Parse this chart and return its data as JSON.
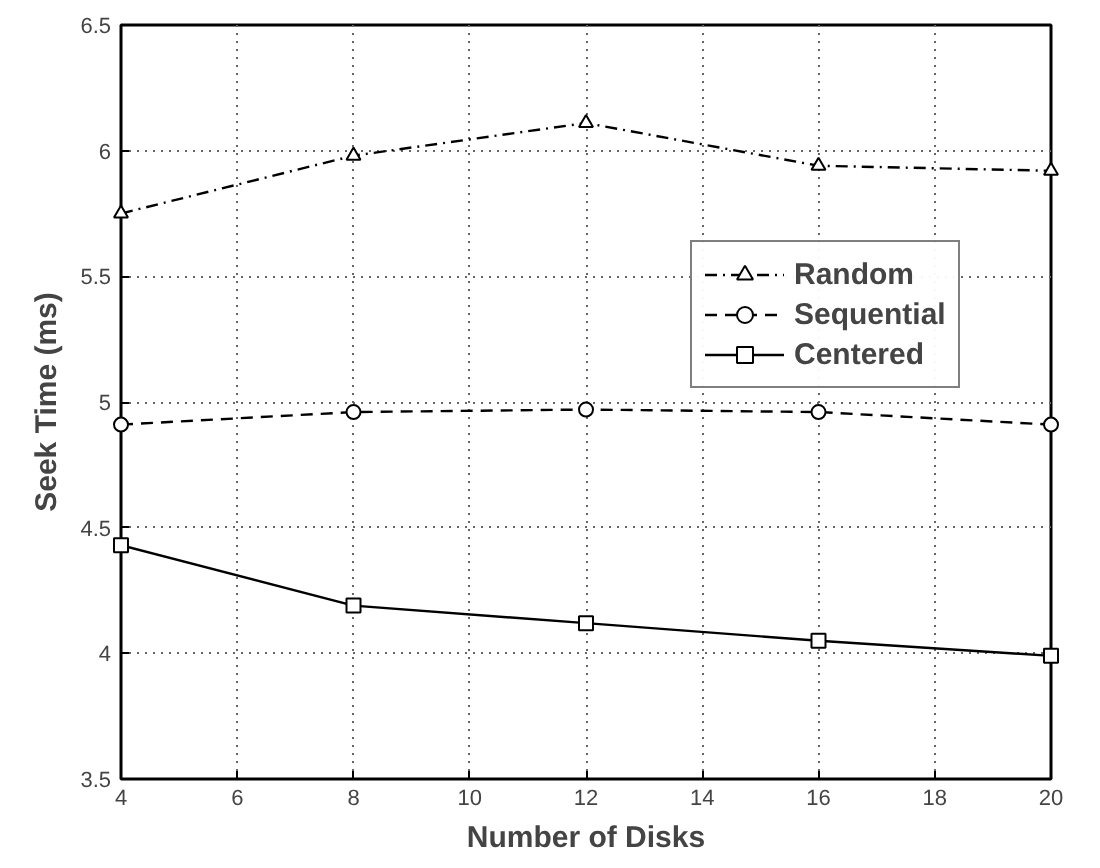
{
  "chart_data": {
    "type": "line",
    "xlabel": "Number of Disks",
    "ylabel": "Seek Time (ms)",
    "x": [
      4,
      8,
      12,
      16,
      20
    ],
    "series": [
      {
        "name": "Random",
        "color": "#000000",
        "marker": "triangle",
        "line_style": "dashdot",
        "values": [
          5.75,
          5.98,
          6.11,
          5.94,
          5.92
        ]
      },
      {
        "name": "Sequential",
        "color": "#000000",
        "marker": "circle",
        "line_style": "dashed",
        "values": [
          4.91,
          4.96,
          4.97,
          4.96,
          4.91
        ]
      },
      {
        "name": "Centered",
        "color": "#000000",
        "marker": "square",
        "line_style": "solid",
        "values": [
          4.43,
          4.19,
          4.12,
          4.05,
          3.99
        ]
      }
    ],
    "xlim": [
      4,
      20
    ],
    "xticks": [
      4,
      6,
      8,
      10,
      12,
      14,
      16,
      18,
      20
    ],
    "ylim": [
      3.5,
      6.5
    ],
    "yticks": [
      3.5,
      4,
      4.5,
      5,
      5.5,
      6,
      6.5
    ],
    "grid": true,
    "legend": "right"
  }
}
